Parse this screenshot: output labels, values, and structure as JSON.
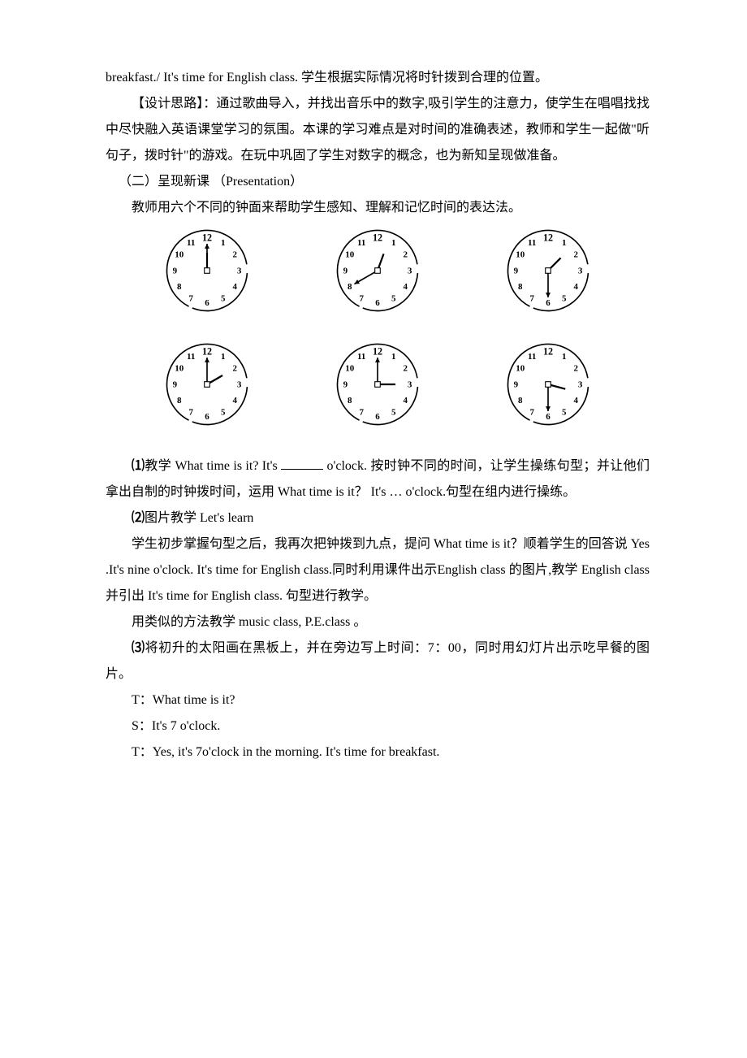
{
  "p1": "breakfast./ It's time for English class. 学生根据实际情况将时针拨到合理的位置。",
  "p2": "【设计思路】：通过歌曲导入，并找出音乐中的数字,吸引学生的注意力，使学生在唱唱找找中尽快融入英语课堂学习的氛围。本课的学习难点是对时间的准确表述，教师和学生一起做\"听句子，拨时针\"的游戏。在玩中巩固了学生对数字的概念，也为新知呈现做准备。",
  "p3": "（二）呈现新课  （Presentation）",
  "p4": "教师用六个不同的钟面来帮助学生感知、理解和记忆时间的表达法。",
  "item1_label": "⑴",
  "item1_a": "教学 What time is it? It's ",
  "item1_b": " o'clock. 按时钟不同的时间，让学生操练句型；并让他们拿出自制的时钟拨时间，运用 What time is it？ It's … o'clock.句型在组内进行操练。",
  "item2_label": "⑵",
  "item2_text": "图片教学 Let's learn",
  "p5": "学生初步掌握句型之后，我再次把钟拨到九点，提问 What time is it？顺着学生的回答说 Yes .It's nine o'clock. It's time for English class.同时利用课件出示English class 的图片,教学 English class  并引出 It's time for English class.  句型进行教学。",
  "p6": "用类似的方法教学 music class, P.E.class  。",
  "item3_label": "⑶",
  "item3_text": "将初升的太阳画在黑板上，并在旁边写上时间：7：00，同时用幻灯片出示吃早餐的图片。",
  "d1": "T：What time is it?",
  "d2": "S：It's 7 o'clock.",
  "d3": "T：Yes, it's 7o'clock in the morning. It's time for breakfast.",
  "clocks": {
    "stroke": "#000000",
    "face_fill": "#ffffff",
    "row1": [
      {
        "hour": 12,
        "minute": 0
      },
      {
        "hour": 12,
        "minute": 40
      },
      {
        "hour": 1,
        "minute": 30
      }
    ],
    "row2": [
      {
        "hour": 2,
        "minute": 0
      },
      {
        "hour": 3,
        "minute": 0
      },
      {
        "hour": 3,
        "minute": 30
      }
    ]
  }
}
